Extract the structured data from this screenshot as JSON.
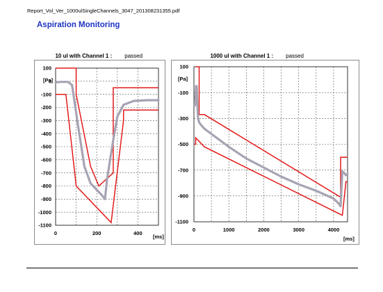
{
  "document": {
    "filename": "Report_Vol_Ver_1000ulSingleChannels_3047_201308231355.pdf",
    "heading": "Aspiration Monitoring"
  },
  "chart_data": [
    {
      "type": "line",
      "title": "10 ul with Channel 1 :",
      "status": "passed",
      "xlabel": "[ms]",
      "ylabel": "[Pa]",
      "xlim": [
        0,
        500
      ],
      "ylim": [
        -1100,
        100
      ],
      "xticks": [
        "0",
        "200",
        "400"
      ],
      "yticks": [
        "100",
        "0",
        "-100",
        "-200",
        "-300",
        "-400",
        "-500",
        "-600",
        "-700",
        "-800",
        "-900",
        "-1000",
        "-1100"
      ],
      "grid": true,
      "series": [
        {
          "role": "upper-limit",
          "color": "#e41a1a",
          "x": [
            0,
            100,
            100,
            170,
            210,
            280,
            280,
            500
          ],
          "y": [
            100,
            100,
            -100,
            -650,
            -800,
            -700,
            -50,
            -50
          ]
        },
        {
          "role": "lower-limit",
          "color": "#e41a1a",
          "x": [
            0,
            50,
            50,
            100,
            270,
            330,
            330,
            500
          ],
          "y": [
            -100,
            -100,
            -100,
            -800,
            -1080,
            -300,
            -220,
            -220
          ]
        },
        {
          "role": "measurement",
          "color": "#a8a3b3",
          "x": [
            0,
            20,
            60,
            80,
            110,
            140,
            170,
            200,
            225,
            240,
            250,
            265,
            280,
            300,
            330,
            380,
            450,
            500
          ],
          "y": [
            -10,
            -5,
            -5,
            -30,
            -350,
            -650,
            -780,
            -830,
            -870,
            -900,
            -750,
            -600,
            -450,
            -270,
            -180,
            -150,
            -145,
            -145
          ]
        }
      ]
    },
    {
      "type": "line",
      "title": "1000 ul with Channel 1 :",
      "status": "passed",
      "xlabel": "[ms]",
      "ylabel": "[Pa]",
      "xlim": [
        0,
        4400
      ],
      "ylim": [
        -1100,
        100
      ],
      "xticks": [
        "0",
        "1000",
        "2000",
        "3000",
        "4000"
      ],
      "yticks": [
        "100",
        "-100",
        "-300",
        "-500",
        "-700",
        "-900",
        "-1100"
      ],
      "grid": true,
      "series": [
        {
          "role": "upper-limit",
          "color": "#e41a1a",
          "x": [
            50,
            150,
            150,
            300,
            4200,
            4200,
            4400
          ],
          "y": [
            100,
            100,
            -270,
            -270,
            -910,
            -600,
            -600
          ]
        },
        {
          "role": "lower-limit",
          "color": "#e41a1a",
          "x": [
            0,
            50,
            50,
            300,
            4250,
            4350,
            4350,
            4400
          ],
          "y": [
            -500,
            -500,
            -450,
            -520,
            -1050,
            -800,
            -790,
            -790
          ]
        },
        {
          "role": "measurement",
          "color": "#a8a3b3",
          "x": [
            30,
            60,
            80,
            100,
            120,
            150,
            200,
            300,
            500,
            1000,
            1500,
            2000,
            2500,
            3000,
            3500,
            4000,
            4150,
            4200,
            4250,
            4300,
            4350,
            4400
          ],
          "y": [
            -200,
            -50,
            -50,
            -200,
            -300,
            -330,
            -350,
            -380,
            -420,
            -520,
            -610,
            -680,
            -750,
            -810,
            -860,
            -920,
            -960,
            -980,
            -710,
            -720,
            -740,
            -730
          ]
        }
      ]
    }
  ]
}
